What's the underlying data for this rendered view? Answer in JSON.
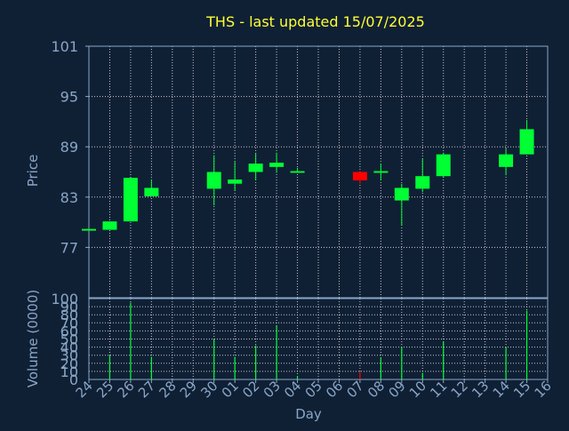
{
  "chart_data": [
    {
      "type": "candlestick",
      "title": "THS - last updated 15/07/2025",
      "ylabel": "Price",
      "ylim": [
        71,
        101
      ],
      "yticks": [
        77,
        83,
        89,
        95,
        101
      ],
      "grid": true,
      "categories": [
        "24",
        "25",
        "26",
        "27",
        "28",
        "29",
        "30",
        "01",
        "02",
        "03",
        "04",
        "05",
        "06",
        "07",
        "08",
        "09",
        "10",
        "11",
        "12",
        "13",
        "14",
        "15",
        "16"
      ],
      "candles": [
        {
          "day": "24",
          "open": 79.0,
          "close": 79.2,
          "high": 79.3,
          "low": 79.0
        },
        {
          "day": "25",
          "open": 79.1,
          "close": 80.1,
          "high": 80.1,
          "low": 79.1
        },
        {
          "day": "26",
          "open": 80.1,
          "close": 85.3,
          "high": 85.3,
          "low": 80.1
        },
        {
          "day": "27",
          "open": 83.1,
          "close": 84.1,
          "high": 85.1,
          "low": 83.1
        },
        {
          "day": "30",
          "open": 84.0,
          "close": 86.0,
          "high": 88.0,
          "low": 82.0
        },
        {
          "day": "01",
          "open": 84.6,
          "close": 85.1,
          "high": 87.2,
          "low": 83.8
        },
        {
          "day": "02",
          "open": 86.0,
          "close": 87.0,
          "high": 88.2,
          "low": 85.0
        },
        {
          "day": "03",
          "open": 86.6,
          "close": 87.1,
          "high": 88.3,
          "low": 85.9
        },
        {
          "day": "04",
          "open": 85.9,
          "close": 86.1,
          "high": 86.5,
          "low": 85.9
        },
        {
          "day": "07",
          "open": 86.0,
          "close": 85.0,
          "high": 86.1,
          "low": 84.6
        },
        {
          "day": "08",
          "open": 85.9,
          "close": 86.1,
          "high": 87.0,
          "low": 85.0
        },
        {
          "day": "09",
          "open": 82.6,
          "close": 84.1,
          "high": 84.6,
          "low": 79.6
        },
        {
          "day": "10",
          "open": 84.0,
          "close": 85.5,
          "high": 87.6,
          "low": 83.6
        },
        {
          "day": "11",
          "open": 85.5,
          "close": 88.1,
          "high": 88.3,
          "low": 85.3
        },
        {
          "day": "14",
          "open": 86.6,
          "close": 88.1,
          "high": 88.8,
          "low": 85.6
        },
        {
          "day": "15",
          "open": 88.1,
          "close": 91.1,
          "high": 92.2,
          "low": 88.1
        }
      ]
    },
    {
      "type": "bar",
      "ylabel": "Volume (0000)",
      "xlabel": "Day",
      "ylim": [
        0,
        100
      ],
      "yticks": [
        0,
        10,
        20,
        30,
        40,
        50,
        60,
        70,
        80,
        90,
        100
      ],
      "grid": true,
      "categories": [
        "24",
        "25",
        "26",
        "27",
        "28",
        "29",
        "30",
        "01",
        "02",
        "03",
        "04",
        "05",
        "06",
        "07",
        "08",
        "09",
        "10",
        "11",
        "12",
        "13",
        "14",
        "15",
        "16"
      ],
      "volumes": [
        {
          "day": "24",
          "value": 0
        },
        {
          "day": "25",
          "value": 30
        },
        {
          "day": "26",
          "value": 95
        },
        {
          "day": "27",
          "value": 28
        },
        {
          "day": "30",
          "value": 50
        },
        {
          "day": "01",
          "value": 28
        },
        {
          "day": "02",
          "value": 42
        },
        {
          "day": "03",
          "value": 66
        },
        {
          "day": "04",
          "value": 4
        },
        {
          "day": "07",
          "value": 10
        },
        {
          "day": "08",
          "value": 27
        },
        {
          "day": "09",
          "value": 40
        },
        {
          "day": "10",
          "value": 8
        },
        {
          "day": "11",
          "value": 47
        },
        {
          "day": "14",
          "value": 40
        },
        {
          "day": "15",
          "value": 85
        }
      ]
    }
  ],
  "colors": {
    "background": "#0f2035",
    "axis": "#8aa6c6",
    "grid": "#c8c8c8",
    "title": "#ffff33",
    "up": "#00ff33",
    "down": "#ff0000"
  }
}
